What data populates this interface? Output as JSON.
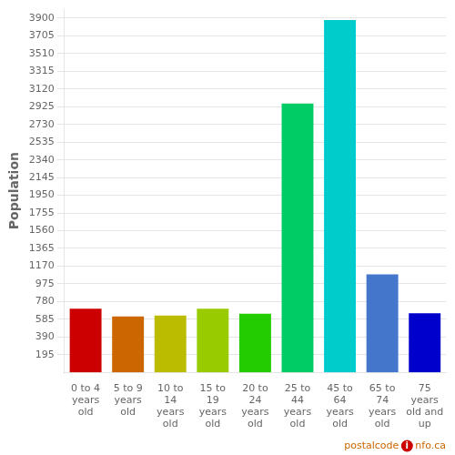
{
  "chart_data": {
    "type": "bar",
    "categories": [
      "0 to 4\nyears\nold",
      "5 to 9\nyears\nold",
      "10 to\n14\nyears\nold",
      "15 to\n19\nyears\nold",
      "20 to\n24\nyears\nold",
      "25 to\n44\nyears\nold",
      "45 to\n64\nyears\nold",
      "65 to\n74\nyears\nold",
      "75\nyears\nold and\nup"
    ],
    "values": [
      700,
      615,
      625,
      700,
      645,
      2960,
      3880,
      1080,
      650
    ],
    "colors": [
      "#cc0000",
      "#cc6600",
      "#bbbb00",
      "#99cc00",
      "#22cc00",
      "#00cc66",
      "#00cccc",
      "#4477cc",
      "#0000cc"
    ],
    "ylabel": "Population",
    "ylim": [
      0,
      4000
    ],
    "yticks": [
      195,
      390,
      585,
      780,
      975,
      1170,
      1365,
      1560,
      1755,
      1950,
      2145,
      2340,
      2535,
      2730,
      2925,
      3120,
      3315,
      3510,
      3705,
      3900
    ],
    "grid": true,
    "annotations": [
      {
        "text": "postalcode",
        "color": "#cc6600"
      },
      {
        "text": "i",
        "color": "#cc0000"
      },
      {
        "text": "nfo.ca",
        "color": "#cc6600"
      }
    ]
  }
}
